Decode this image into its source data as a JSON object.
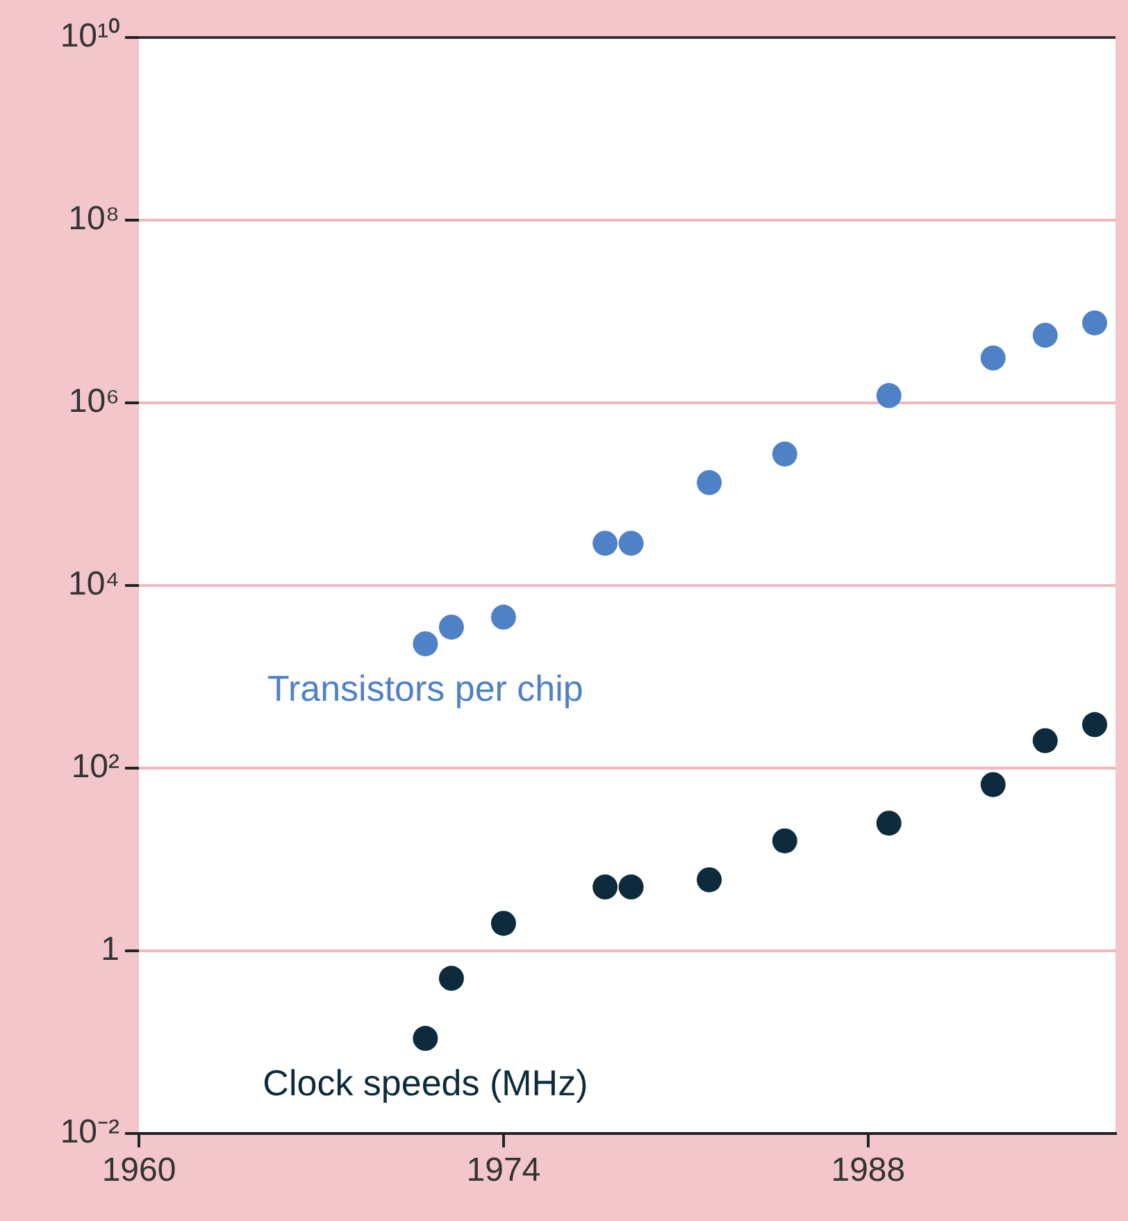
{
  "chart_data": {
    "type": "scatter",
    "log": "y",
    "grid": "y",
    "legend": false,
    "marker": "circle",
    "xlim": [
      1960,
      1997.5
    ],
    "xticks": [
      1960,
      1974,
      1988
    ],
    "ylim": [
      0.01,
      10000000000
    ],
    "yticks": [
      {
        "value": 0.01,
        "label": "10⁻²"
      },
      {
        "value": 1,
        "label": "1"
      },
      {
        "value": 100,
        "label": "10²"
      },
      {
        "value": 10000,
        "label": "10⁴"
      },
      {
        "value": 1000000,
        "label": "10⁶"
      },
      {
        "value": 100000000,
        "label": "10⁸"
      },
      {
        "value": 10000000000,
        "label": "10¹⁰"
      }
    ],
    "x": [
      1971,
      1972,
      1974,
      1977.9,
      1978.9,
      1981.9,
      1984.8,
      1988.8,
      1992.8,
      1994.8,
      1996.7
    ],
    "series": [
      {
        "name": "Transistors per chip",
        "color": "#4f81c7",
        "values": [
          2300,
          3500,
          4500,
          29000,
          29000,
          134000,
          275000,
          1200000,
          3100000,
          5500000,
          7500000
        ]
      },
      {
        "name": "Clock speeds (MHz)",
        "color": "#0d2b3c",
        "values": [
          0.11,
          0.5,
          2,
          5,
          5,
          6,
          16,
          25,
          66,
          200,
          300
        ]
      }
    ]
  }
}
